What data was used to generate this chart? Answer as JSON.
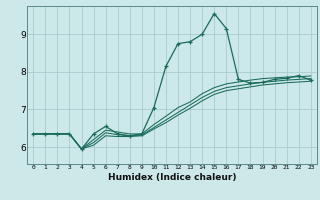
{
  "xlabel": "Humidex (Indice chaleur)",
  "bg_color": "#cce8e8",
  "grid_color": "#aacccc",
  "line_color": "#1a6b5a",
  "xlim": [
    -0.5,
    23.5
  ],
  "ylim": [
    5.55,
    9.75
  ],
  "yticks": [
    6,
    7,
    8,
    9
  ],
  "xticks": [
    0,
    1,
    2,
    3,
    4,
    5,
    6,
    7,
    8,
    9,
    10,
    11,
    12,
    13,
    14,
    15,
    16,
    17,
    18,
    19,
    20,
    21,
    22,
    23
  ],
  "line1_x": [
    0,
    1,
    2,
    3,
    4,
    5,
    6,
    7,
    8,
    9,
    10,
    11,
    12,
    13,
    14,
    15,
    16,
    17,
    18,
    19,
    20,
    21,
    22,
    23
  ],
  "line1_y": [
    6.35,
    6.35,
    6.35,
    6.35,
    5.95,
    6.35,
    6.55,
    6.35,
    6.3,
    6.35,
    7.05,
    8.15,
    8.75,
    8.8,
    9.0,
    9.55,
    9.15,
    7.8,
    7.7,
    7.72,
    7.8,
    7.83,
    7.9,
    7.78
  ],
  "line2_x": [
    0,
    1,
    2,
    3,
    4,
    5,
    6,
    7,
    8,
    9,
    10,
    11,
    12,
    13,
    14,
    15,
    16,
    17,
    18,
    19,
    20,
    21,
    22,
    23
  ],
  "line2_y": [
    6.35,
    6.35,
    6.35,
    6.35,
    5.95,
    6.2,
    6.45,
    6.4,
    6.35,
    6.35,
    6.6,
    6.82,
    7.05,
    7.2,
    7.42,
    7.58,
    7.68,
    7.73,
    7.78,
    7.82,
    7.84,
    7.86,
    7.87,
    7.89
  ],
  "line3_x": [
    0,
    1,
    2,
    3,
    4,
    5,
    6,
    7,
    8,
    9,
    10,
    11,
    12,
    13,
    14,
    15,
    16,
    17,
    18,
    19,
    20,
    21,
    22,
    23
  ],
  "line3_y": [
    6.35,
    6.35,
    6.35,
    6.35,
    5.95,
    6.12,
    6.38,
    6.33,
    6.3,
    6.32,
    6.52,
    6.72,
    6.92,
    7.12,
    7.32,
    7.48,
    7.58,
    7.63,
    7.68,
    7.72,
    7.75,
    7.78,
    7.8,
    7.82
  ],
  "line4_x": [
    0,
    1,
    2,
    3,
    4,
    5,
    6,
    7,
    8,
    9,
    10,
    11,
    12,
    13,
    14,
    15,
    16,
    17,
    18,
    19,
    20,
    21,
    22,
    23
  ],
  "line4_y": [
    6.35,
    6.35,
    6.35,
    6.35,
    5.95,
    6.05,
    6.3,
    6.28,
    6.28,
    6.3,
    6.48,
    6.65,
    6.85,
    7.03,
    7.23,
    7.4,
    7.5,
    7.55,
    7.6,
    7.65,
    7.68,
    7.71,
    7.73,
    7.75
  ]
}
